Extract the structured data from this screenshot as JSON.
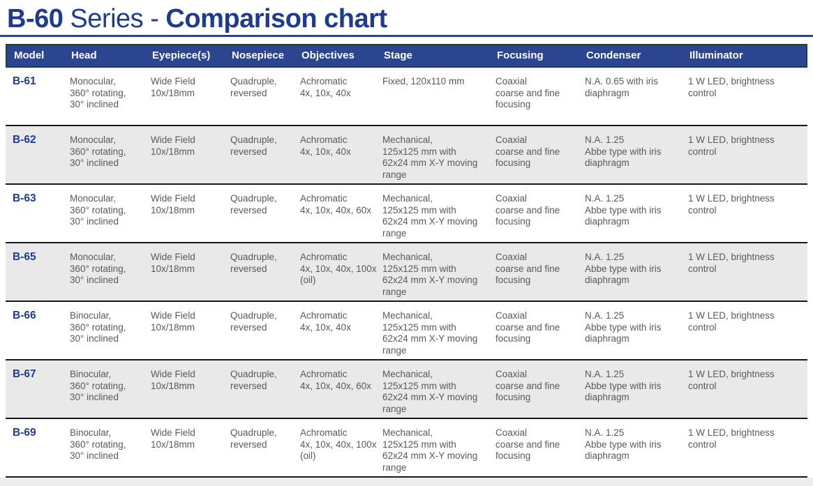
{
  "title": {
    "prefix": "B-60",
    "middle": " Series - ",
    "suffix": "Comparison chart"
  },
  "colors": {
    "title_navy": "#1e3b94",
    "header_blue": "#2b4590",
    "header_border_green": "#1b4527",
    "row_alt_gray": "#e9e9e9",
    "cell_text_gray": "#595959",
    "row_separator": "#16161d"
  },
  "table": {
    "columns": [
      "Model",
      "Head",
      "Eyepiece(s)",
      "Nosepiece",
      "Objectives",
      "Stage",
      "Focusing",
      "Condenser",
      "Illuminator"
    ],
    "rows": [
      {
        "model": "B-61",
        "head": "Monocular,\n360° rotating,\n30° inclined",
        "eyepiece": "Wide Field\n10x/18mm",
        "nosepiece": "Quadruple,\nreversed",
        "objectives": "Achromatic\n4x, 10x, 40x",
        "stage": "Fixed, 120x110 mm",
        "focusing": "Coaxial\ncoarse and fine\nfocusing",
        "condenser": "N.A. 0.65 with iris\ndiaphragm",
        "illuminator": "1 W LED, brightness\ncontrol"
      },
      {
        "model": "B-62",
        "head": "Monocular,\n360° rotating,\n30° inclined",
        "eyepiece": "Wide Field\n10x/18mm",
        "nosepiece": "Quadruple,\nreversed",
        "objectives": "Achromatic\n4x, 10x, 40x",
        "stage": "Mechanical,\n125x125 mm with\n62x24 mm X-Y moving\nrange",
        "focusing": "Coaxial\ncoarse and fine\nfocusing",
        "condenser": "N.A. 1.25\nAbbe type with iris\ndiaphragm",
        "illuminator": "1 W LED, brightness\ncontrol"
      },
      {
        "model": "B-63",
        "head": "Monocular,\n360° rotating,\n30° inclined",
        "eyepiece": "Wide Field\n10x/18mm",
        "nosepiece": "Quadruple,\nreversed",
        "objectives": "Achromatic\n4x, 10x, 40x, 60x",
        "stage": "Mechanical,\n125x125 mm with\n62x24 mm X-Y moving\nrange",
        "focusing": "Coaxial\ncoarse and fine\nfocusing",
        "condenser": "N.A. 1.25\nAbbe type with iris\ndiaphragm",
        "illuminator": "1 W LED, brightness\ncontrol"
      },
      {
        "model": "B-65",
        "head": "Monocular,\n360° rotating,\n30° inclined",
        "eyepiece": "Wide Field\n10x/18mm",
        "nosepiece": "Quadruple,\nreversed",
        "objectives": "Achromatic\n4x, 10x, 40x, 100x\n(oil)",
        "stage": "Mechanical,\n125x125 mm with\n62x24 mm X-Y moving\nrange",
        "focusing": "Coaxial\ncoarse and fine\nfocusing",
        "condenser": "N.A. 1.25\nAbbe type with iris\ndiaphragm",
        "illuminator": "1 W LED, brightness\ncontrol"
      },
      {
        "model": "B-66",
        "head": "Binocular,\n360° rotating,\n30° inclined",
        "eyepiece": "Wide Field\n10x/18mm",
        "nosepiece": "Quadruple,\nreversed",
        "objectives": "Achromatic\n4x, 10x, 40x",
        "stage": "Mechanical,\n125x125 mm with\n62x24 mm X-Y moving\nrange",
        "focusing": "Coaxial\ncoarse and fine\nfocusing",
        "condenser": "N.A. 1.25\nAbbe type with iris\ndiaphragm",
        "illuminator": "1 W LED, brightness\ncontrol"
      },
      {
        "model": "B-67",
        "head": "Binocular,\n360° rotating,\n30° inclined",
        "eyepiece": "Wide Field\n10x/18mm",
        "nosepiece": "Quadruple,\nreversed",
        "objectives": "Achromatic\n4x, 10x, 40x, 60x",
        "stage": "Mechanical,\n125x125 mm with\n62x24 mm X-Y moving\nrange",
        "focusing": "Coaxial\ncoarse and fine\nfocusing",
        "condenser": "N.A. 1.25\nAbbe type with iris\ndiaphragm",
        "illuminator": "1 W LED, brightness\ncontrol"
      },
      {
        "model": "B-69",
        "head": "Binocular,\n360° rotating,\n30° inclined",
        "eyepiece": "Wide Field\n10x/18mm",
        "nosepiece": "Quadruple,\nreversed",
        "objectives": "Achromatic\n4x, 10x, 40x, 100x\n(oil)",
        "stage": "Mechanical,\n125x125 mm with\n62x24 mm X-Y moving\nrange",
        "focusing": "Coaxial\ncoarse and fine\nfocusing",
        "condenser": "N.A. 1.25\nAbbe type with iris\ndiaphragm",
        "illuminator": "1 W LED, brightness\ncontrol"
      }
    ]
  }
}
